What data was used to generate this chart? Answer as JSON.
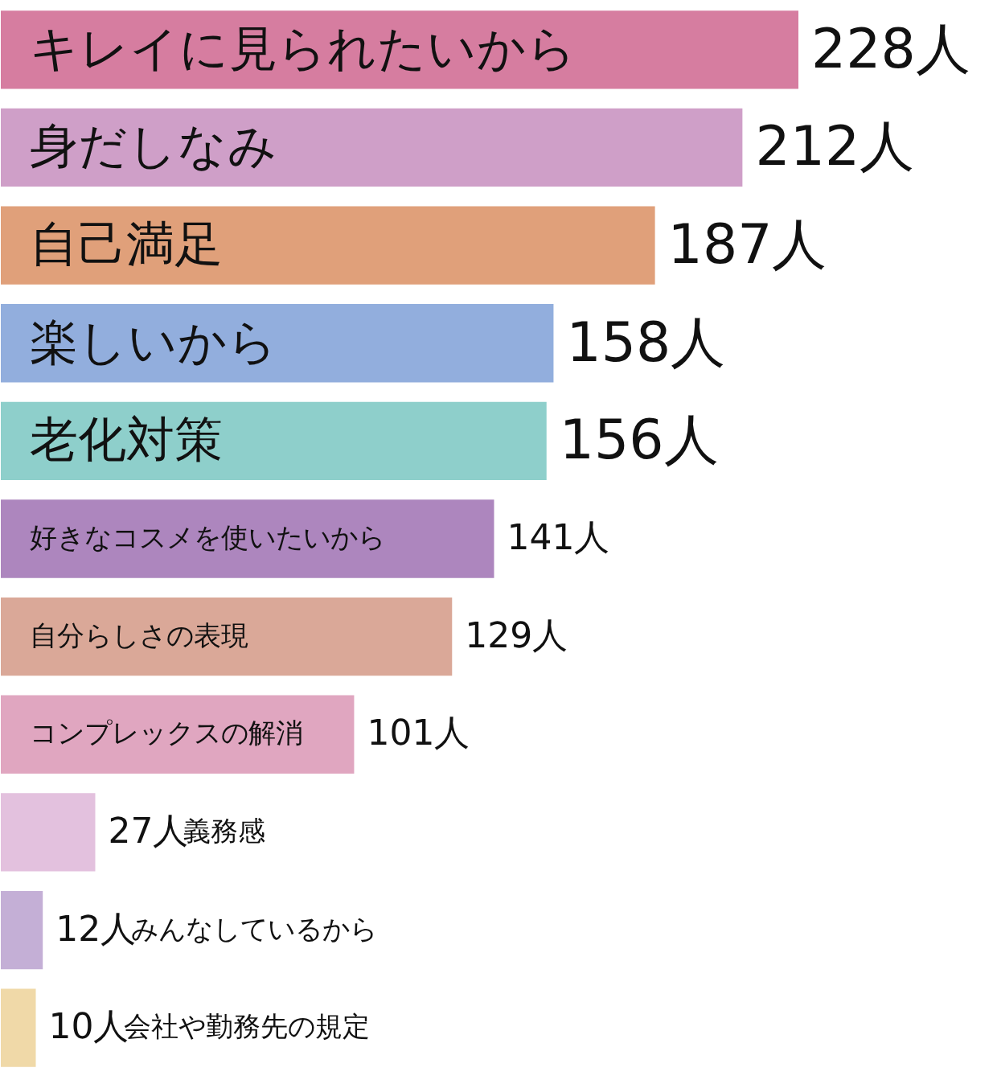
{
  "chart_data": {
    "type": "bar",
    "orientation": "horizontal",
    "relative": false,
    "categories": [
      "キレイに見られたいから",
      "身だしなみ",
      "自己満足",
      "楽しいから",
      "老化対策",
      "好きなコスメを使いたいから",
      "自分らしさの表現",
      "コンプレックスの解消",
      "義務感",
      "みんなしているから",
      "会社や勤務先の規定"
    ],
    "values": [
      228,
      212,
      187,
      158,
      156,
      141,
      129,
      101,
      27,
      12,
      10
    ],
    "value_labels": [
      "228人",
      "212人",
      "187人",
      "158人",
      "156人",
      "141人",
      "129人",
      "101人",
      "27人",
      "12人",
      "10人"
    ],
    "colors": [
      "#d67da0",
      "#cf9fc8",
      "#e0a07a",
      "#92aedd",
      "#8ecfcb",
      "#ad86be",
      "#daa898",
      "#e0a6c0",
      "#e3c1de",
      "#c4afd6",
      "#f0d9a8"
    ],
    "xlim": [
      0,
      285
    ],
    "tick_labels": false,
    "grid": false
  }
}
